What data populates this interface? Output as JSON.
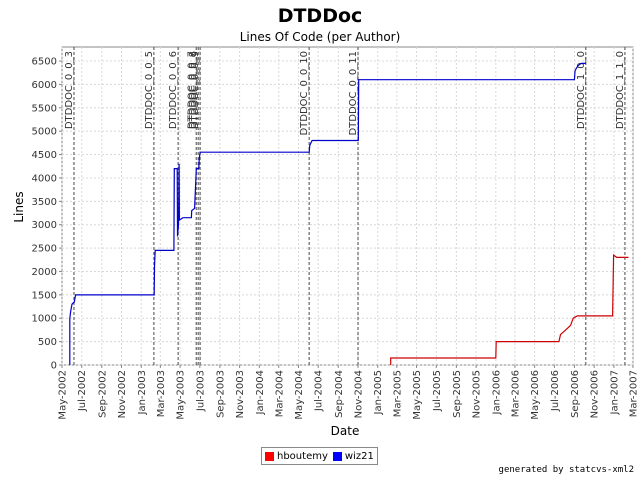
{
  "chart_data": {
    "type": "line",
    "title": "DTDDoc",
    "subtitle": "Lines Of Code (per Author)",
    "xlabel": "Date",
    "ylabel": "Lines",
    "xlim": [
      "2002-05-01",
      "2007-03-01"
    ],
    "ylim": [
      0,
      6800
    ],
    "grid": true,
    "legend_position": "bottom",
    "x_ticks": [
      "May-2002",
      "Jul-2002",
      "Sep-2002",
      "Nov-2002",
      "Jan-2003",
      "Mar-2003",
      "May-2003",
      "Jul-2003",
      "Sep-2003",
      "Nov-2003",
      "Jan-2004",
      "Mar-2004",
      "May-2004",
      "Jul-2004",
      "Sep-2004",
      "Nov-2004",
      "Jan-2005",
      "Mar-2005",
      "May-2005",
      "Jul-2005",
      "Sep-2005",
      "Nov-2005",
      "Jan-2006",
      "Mar-2006",
      "May-2006",
      "Jul-2006",
      "Sep-2006",
      "Nov-2006",
      "Jan-2007",
      "Mar-2007"
    ],
    "y_ticks": [
      0,
      500,
      1000,
      1500,
      2000,
      2500,
      3000,
      3500,
      4000,
      4500,
      5000,
      5500,
      6000,
      6500
    ],
    "series": [
      {
        "name": "wiz21",
        "color": "#0000cc",
        "points": [
          [
            "2002-05-25",
            0
          ],
          [
            "2002-05-25",
            1000
          ],
          [
            "2002-05-28",
            1150
          ],
          [
            "2002-06-01",
            1300
          ],
          [
            "2002-06-08",
            1350
          ],
          [
            "2002-06-12",
            1500
          ],
          [
            "2003-02-10",
            1500
          ],
          [
            "2003-02-11",
            2100
          ],
          [
            "2003-02-13",
            2450
          ],
          [
            "2003-04-12",
            2450
          ],
          [
            "2003-04-13",
            4200
          ],
          [
            "2003-04-22",
            4200
          ],
          [
            "2003-04-23",
            2750
          ],
          [
            "2003-04-26",
            3000
          ],
          [
            "2003-04-28",
            4300
          ],
          [
            "2003-04-29",
            3100
          ],
          [
            "2003-05-10",
            3150
          ],
          [
            "2003-06-05",
            3150
          ],
          [
            "2003-06-06",
            3300
          ],
          [
            "2003-06-15",
            3350
          ],
          [
            "2003-06-20",
            4200
          ],
          [
            "2003-06-28",
            4200
          ],
          [
            "2003-06-29",
            4400
          ],
          [
            "2003-07-02",
            4550
          ],
          [
            "2004-06-03",
            4550
          ],
          [
            "2004-06-05",
            4700
          ],
          [
            "2004-06-12",
            4800
          ],
          [
            "2004-11-02",
            4800
          ],
          [
            "2004-11-03",
            6100
          ],
          [
            "2006-09-01",
            6100
          ],
          [
            "2006-09-03",
            6300
          ],
          [
            "2006-09-12",
            6400
          ],
          [
            "2006-09-22",
            6450
          ],
          [
            "2006-10-06",
            6450
          ]
        ]
      },
      {
        "name": "hboutemy",
        "color": "#cc0000",
        "points": [
          [
            "2005-02-10",
            0
          ],
          [
            "2005-02-10",
            150
          ],
          [
            "2006-01-01",
            150
          ],
          [
            "2006-01-02",
            500
          ],
          [
            "2006-07-15",
            500
          ],
          [
            "2006-07-20",
            650
          ],
          [
            "2006-08-05",
            750
          ],
          [
            "2006-08-20",
            850
          ],
          [
            "2006-08-28",
            1000
          ],
          [
            "2006-09-10",
            1050
          ],
          [
            "2006-12-28",
            1050
          ],
          [
            "2006-12-31",
            2350
          ],
          [
            "2007-01-10",
            2300
          ],
          [
            "2007-02-15",
            2300
          ]
        ]
      }
    ],
    "annotations": [
      {
        "label": "DTDDOC_0_0_3",
        "x": "2002-06-07"
      },
      {
        "label": "DTDDOC_0_0_5",
        "x": "2003-02-09"
      },
      {
        "label": "DTDDOC_0_0_6",
        "x": "2003-04-25"
      },
      {
        "label": "DTDDOC_0_0_7",
        "x": "2003-06-20"
      },
      {
        "label": "DTDDOC_0_0_8",
        "x": "2003-06-26"
      },
      {
        "label": "DTDDOC_0_0_9",
        "x": "2003-07-02"
      },
      {
        "label": "DTDDOC_0_0_10",
        "x": "2004-06-03"
      },
      {
        "label": "DTDDOC_0_0_11",
        "x": "2004-11-01"
      },
      {
        "label": "DTDDOC_1_0_0",
        "x": "2006-10-06"
      },
      {
        "label": "DTDDOC_1_1_0",
        "x": "2007-02-04"
      }
    ]
  },
  "footer": "generated by statcvs-xml2"
}
